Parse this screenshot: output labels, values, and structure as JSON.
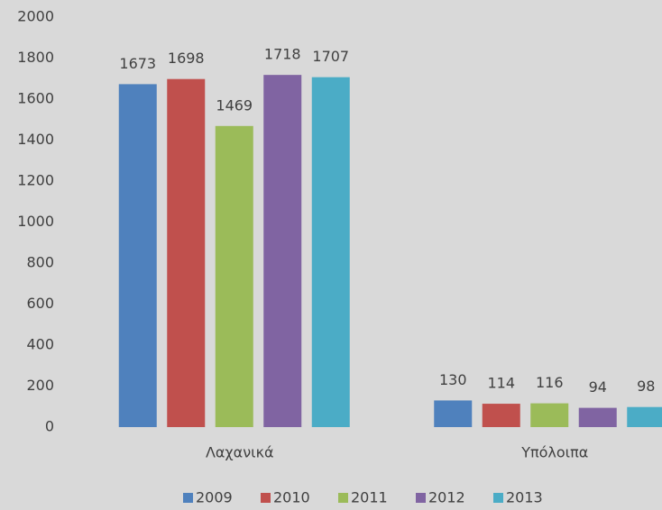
{
  "chart_data": {
    "type": "bar",
    "categories": [
      "Λαχανικά",
      "Υπόλοιπα"
    ],
    "series": [
      {
        "name": "2009",
        "color": "#4f81bd",
        "values": [
          1673,
          130
        ]
      },
      {
        "name": "2010",
        "color": "#c0504d",
        "values": [
          1698,
          114
        ]
      },
      {
        "name": "2011",
        "color": "#9bbb59",
        "values": [
          1469,
          116
        ]
      },
      {
        "name": "2012",
        "color": "#8064a2",
        "values": [
          1718,
          94
        ]
      },
      {
        "name": "2013",
        "color": "#4bacc6",
        "values": [
          1707,
          98
        ]
      }
    ],
    "ylim": [
      0,
      2000
    ],
    "yticks": [
      0,
      200,
      400,
      600,
      800,
      1000,
      1200,
      1400,
      1600,
      1800,
      2000
    ],
    "grid": false,
    "legend": "bottom"
  }
}
